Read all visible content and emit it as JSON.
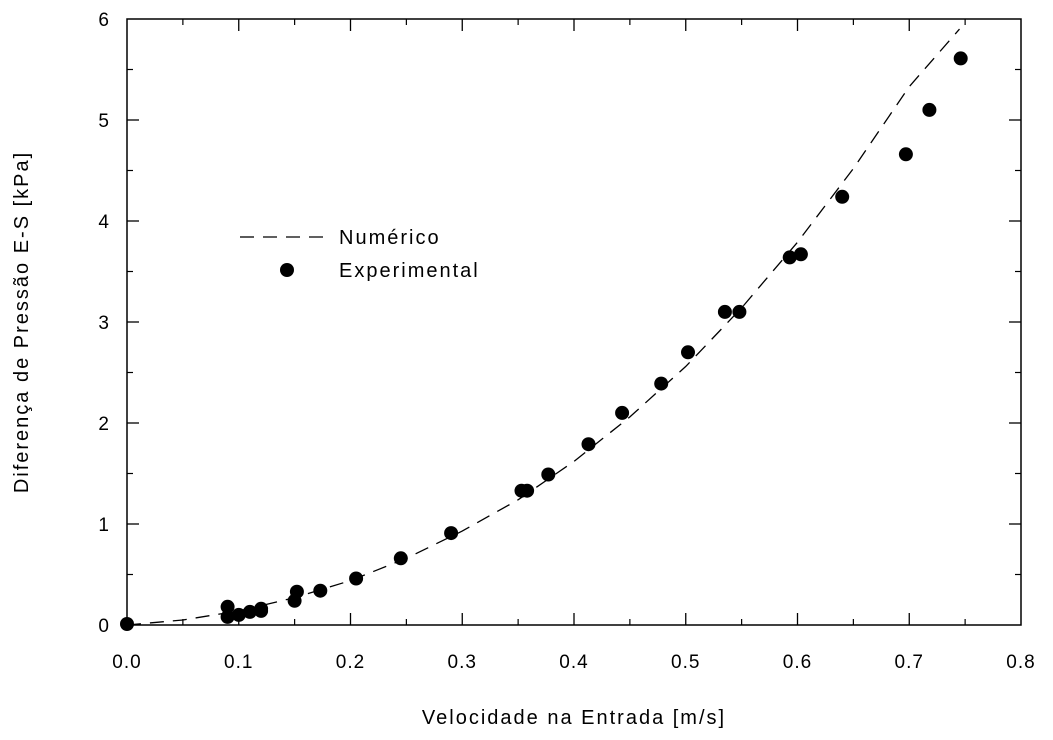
{
  "chart_data": {
    "type": "scatter",
    "title": "",
    "xlabel": "Velocidade na Entrada [m/s]",
    "ylabel": "Diferença de Pressão E-S [kPa]",
    "xlim": [
      0.0,
      0.8
    ],
    "ylim": [
      0,
      6
    ],
    "x_ticks": [
      "0.0",
      "0.1",
      "0.2",
      "0.3",
      "0.4",
      "0.5",
      "0.6",
      "0.7",
      "0.8"
    ],
    "y_ticks": [
      "0",
      "1",
      "2",
      "3",
      "4",
      "5",
      "6"
    ],
    "x_minor_step": 0.05,
    "y_minor_step": 0.5,
    "grid": false,
    "legend_position": "center-left",
    "series": [
      {
        "name": "Numérico",
        "style": "dashed-line",
        "color": "#000000",
        "x": [
          0.0,
          0.05,
          0.1,
          0.15,
          0.2,
          0.25,
          0.3,
          0.35,
          0.4,
          0.45,
          0.5,
          0.55,
          0.6,
          0.65,
          0.7,
          0.745
        ],
        "y": [
          0.0,
          0.05,
          0.14,
          0.27,
          0.44,
          0.66,
          0.93,
          1.24,
          1.62,
          2.06,
          2.56,
          3.14,
          3.79,
          4.52,
          5.33,
          5.9
        ]
      },
      {
        "name": "Experimental",
        "style": "filled-circle",
        "color": "#000000",
        "x": [
          0.0,
          0.09,
          0.09,
          0.1,
          0.11,
          0.12,
          0.12,
          0.15,
          0.152,
          0.173,
          0.205,
          0.245,
          0.29,
          0.353,
          0.358,
          0.377,
          0.413,
          0.443,
          0.478,
          0.502,
          0.535,
          0.548,
          0.593,
          0.603,
          0.64,
          0.697,
          0.718,
          0.746
        ],
        "y": [
          0.01,
          0.18,
          0.08,
          0.1,
          0.13,
          0.16,
          0.14,
          0.24,
          0.33,
          0.34,
          0.46,
          0.66,
          0.91,
          1.33,
          1.33,
          1.49,
          1.79,
          2.1,
          2.39,
          2.7,
          3.1,
          3.1,
          3.64,
          3.67,
          4.24,
          4.66,
          5.1,
          5.61
        ]
      }
    ]
  }
}
